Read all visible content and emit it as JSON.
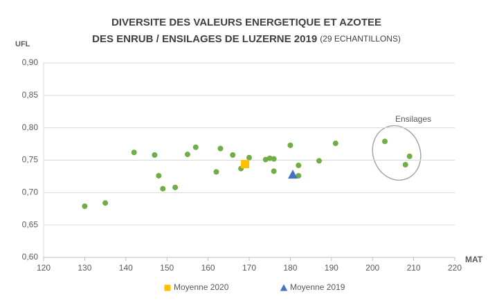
{
  "chart_data": {
    "type": "scatter",
    "title": [
      "DIVERSITE DES VALEURS ENERGETIQUE ET AZOTEE",
      "DES ENRUB / ENSILAGES DE LUZERNE 2019"
    ],
    "subtitle": "(29 ECHANTILLONS)",
    "xlabel": "MAT",
    "ylabel": "UFL",
    "xlim": [
      120,
      220
    ],
    "xticks": [
      120,
      130,
      140,
      150,
      160,
      170,
      180,
      190,
      200,
      210,
      220
    ],
    "ylim": [
      0.6,
      0.9
    ],
    "yticks": [
      {
        "value": 0.6,
        "label": "0,60"
      },
      {
        "value": 0.65,
        "label": "0,65"
      },
      {
        "value": 0.7,
        "label": "0,70"
      },
      {
        "value": 0.75,
        "label": "0,75"
      },
      {
        "value": 0.8,
        "label": "0,80"
      },
      {
        "value": 0.85,
        "label": "0,85"
      },
      {
        "value": 0.9,
        "label": "0,90"
      }
    ],
    "grid": true,
    "legend": "bottom",
    "series": [
      {
        "color": "#70ad47",
        "marker": "circle",
        "x": [
          130,
          135,
          142,
          147,
          148,
          149,
          152,
          155,
          157,
          162,
          163,
          166,
          168,
          170,
          174,
          175,
          176,
          176,
          180,
          182,
          182,
          187,
          191,
          203,
          208,
          209
        ],
        "values": [
          0.679,
          0.684,
          0.762,
          0.758,
          0.726,
          0.706,
          0.708,
          0.759,
          0.77,
          0.732,
          0.768,
          0.758,
          0.737,
          0.754,
          0.751,
          0.753,
          0.752,
          0.733,
          0.773,
          0.742,
          0.726,
          0.749,
          0.776,
          0.779,
          0.743,
          0.756
        ]
      },
      {
        "name": "Moyenne 2020",
        "color": "#ffc000",
        "marker": "square",
        "x": [
          169
        ],
        "values": [
          0.744
        ]
      },
      {
        "name": "Moyenne 2019",
        "color": "#4472c4",
        "marker": "triangle",
        "x": [
          180.6
        ],
        "values": [
          0.728
        ]
      }
    ],
    "annotations": [
      {
        "text": "Ensilages"
      }
    ]
  }
}
